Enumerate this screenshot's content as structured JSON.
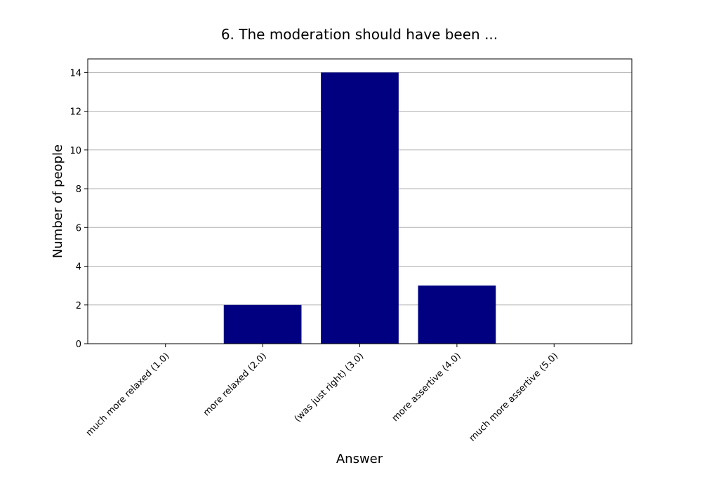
{
  "chart_data": {
    "type": "bar",
    "title": "6. The moderation should have been ...",
    "xlabel": "Answer",
    "ylabel": "Number of people",
    "categories": [
      "much more relaxed (1.0)",
      "more relaxed (2.0)",
      "(was just right) (3.0)",
      "more assertive (4.0)",
      "much more assertive (5.0)"
    ],
    "values": [
      0,
      2,
      14,
      3,
      0
    ],
    "ylim": [
      0,
      14.7
    ],
    "yticks": [
      0,
      2,
      4,
      6,
      8,
      10,
      12,
      14
    ],
    "grid": "y",
    "bar_color": "#000080",
    "grid_color": "#b0b0b0"
  }
}
